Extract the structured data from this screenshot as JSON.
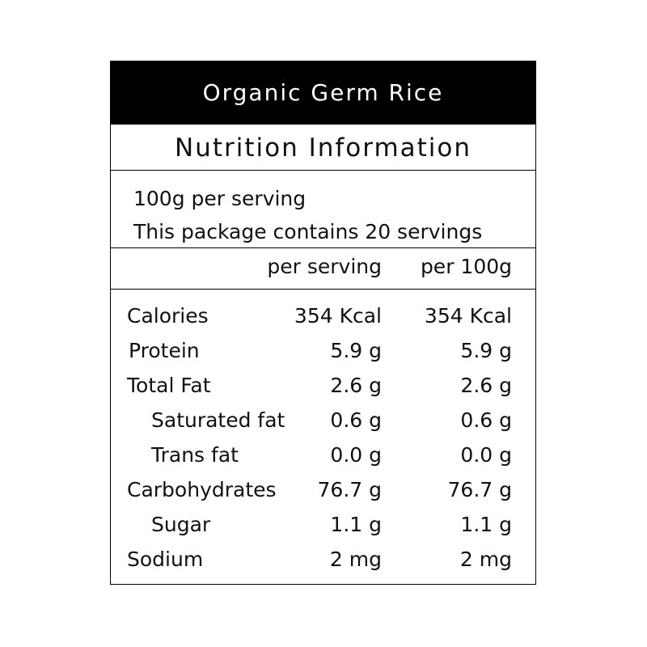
{
  "header": {
    "title": "Organic Germ Rice",
    "subtitle": "Nutrition Information"
  },
  "serving": {
    "size": "100g per serving",
    "count": "This package contains 20 servings"
  },
  "table": {
    "columns": [
      "per serving",
      "per 100g"
    ],
    "rows": [
      [
        "Calories",
        "354 Kcal",
        "354 Kcal"
      ],
      [
        "Protein",
        "5.9 g",
        "5.9 g"
      ],
      [
        "Total Fat",
        "2.6 g",
        "2.6 g"
      ],
      [
        "Saturated fat",
        "0.6 g",
        "0.6 g"
      ],
      [
        "Trans fat",
        "0.0 g",
        "0.0 g"
      ],
      [
        "Carbohydrates",
        "76.7 g",
        "76.7 g"
      ],
      [
        "Sugar",
        "1.1 g",
        "1.1 g"
      ],
      [
        "Sodium",
        "2 mg",
        "2 mg"
      ]
    ]
  }
}
